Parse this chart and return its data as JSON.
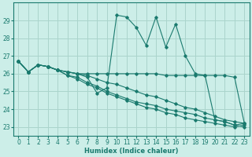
{
  "xlabel": "Humidex (Indice chaleur)",
  "background_color": "#cceee8",
  "grid_color": "#aad4cc",
  "line_color": "#1a7a6e",
  "xlim": [
    -0.5,
    23.5
  ],
  "ylim": [
    22.5,
    30.0
  ],
  "yticks": [
    23,
    24,
    25,
    26,
    27,
    28,
    29
  ],
  "xticks": [
    0,
    1,
    2,
    3,
    4,
    5,
    6,
    7,
    8,
    9,
    10,
    11,
    12,
    13,
    14,
    15,
    16,
    17,
    18,
    19,
    20,
    21,
    22,
    23
  ],
  "series": [
    [
      26.7,
      26.1,
      26.5,
      26.4,
      26.2,
      26.1,
      26.0,
      25.8,
      24.9,
      25.2,
      29.3,
      29.2,
      28.6,
      27.6,
      29.2,
      27.5,
      28.8,
      27.0,
      26.0,
      25.9,
      23.4,
      23.3,
      23.1,
      23.2
    ],
    [
      26.7,
      26.1,
      26.5,
      26.4,
      26.2,
      26.1,
      26.0,
      26.0,
      26.0,
      26.0,
      26.0,
      26.0,
      26.0,
      26.0,
      26.0,
      25.9,
      25.9,
      25.9,
      25.9,
      25.9,
      25.9,
      25.9,
      25.8,
      23.2
    ],
    [
      26.7,
      26.1,
      26.5,
      26.4,
      26.2,
      25.9,
      25.8,
      25.5,
      25.3,
      25.0,
      24.8,
      24.6,
      24.4,
      24.3,
      24.2,
      24.0,
      23.9,
      23.8,
      23.7,
      23.5,
      23.4,
      23.3,
      23.1,
      23.0
    ],
    [
      26.7,
      26.1,
      26.5,
      26.4,
      26.2,
      25.9,
      25.7,
      25.4,
      25.2,
      24.9,
      24.7,
      24.5,
      24.3,
      24.1,
      24.0,
      23.8,
      23.7,
      23.5,
      23.4,
      23.3,
      23.2,
      23.1,
      23.0,
      23.1
    ],
    [
      26.7,
      26.1,
      26.5,
      26.4,
      26.2,
      26.1,
      26.0,
      25.9,
      25.7,
      25.5,
      25.4,
      25.2,
      25.0,
      24.8,
      24.7,
      24.5,
      24.3,
      24.1,
      24.0,
      23.8,
      23.6,
      23.4,
      23.3,
      23.2
    ]
  ]
}
